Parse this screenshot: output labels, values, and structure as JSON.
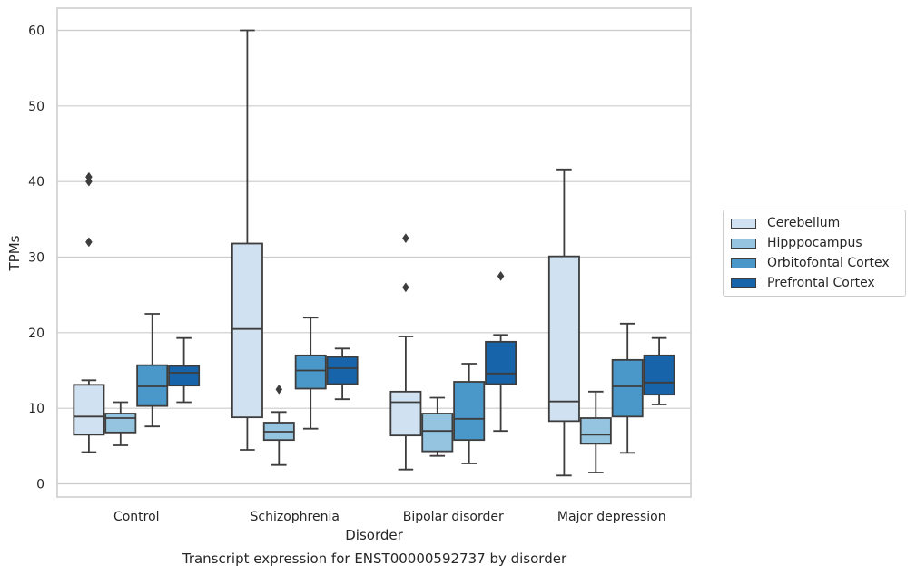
{
  "caption": "Transcript expression for ENST00000592737 by disorder",
  "chart_data": {
    "type": "box",
    "xlabel": "Disorder",
    "ylabel": "TPMs",
    "ylim": [
      -1.7,
      63
    ],
    "yticks": [
      0,
      10,
      20,
      30,
      40,
      50,
      60
    ],
    "grid": "horizontal",
    "legend_position": "right",
    "categories": [
      "Control",
      "Schizophrenia",
      "Bipolar disorder",
      "Major depression"
    ],
    "series": [
      {
        "name": "Cerebellum",
        "color": "#d0e1f2",
        "boxes": [
          {
            "min": 4.2,
            "q1": 6.5,
            "median": 8.9,
            "q3": 13.1,
            "max": 13.7,
            "outliers": [
              32.0,
              40.0,
              40.6
            ]
          },
          {
            "min": 4.5,
            "q1": 8.8,
            "median": 20.5,
            "q3": 31.8,
            "max": 60.0,
            "outliers": []
          },
          {
            "min": 1.9,
            "q1": 6.4,
            "median": 10.8,
            "q3": 12.2,
            "max": 19.5,
            "outliers": [
              26.0,
              32.5
            ]
          },
          {
            "min": 1.1,
            "q1": 8.3,
            "median": 10.9,
            "q3": 30.1,
            "max": 41.6,
            "outliers": []
          }
        ]
      },
      {
        "name": "Hipppocampus",
        "color": "#94c4df",
        "boxes": [
          {
            "min": 5.1,
            "q1": 6.8,
            "median": 8.7,
            "q3": 9.3,
            "max": 10.8,
            "outliers": []
          },
          {
            "min": 2.5,
            "q1": 5.8,
            "median": 6.9,
            "q3": 8.1,
            "max": 9.5,
            "outliers": [
              12.5
            ]
          },
          {
            "min": 3.7,
            "q1": 4.3,
            "median": 7.0,
            "q3": 9.3,
            "max": 11.4,
            "outliers": []
          },
          {
            "min": 1.5,
            "q1": 5.3,
            "median": 6.5,
            "q3": 8.7,
            "max": 12.2,
            "outliers": []
          }
        ]
      },
      {
        "name": "Orbitofontal Cortex",
        "color": "#4a98c9",
        "boxes": [
          {
            "min": 7.6,
            "q1": 10.3,
            "median": 12.9,
            "q3": 15.7,
            "max": 22.5,
            "outliers": []
          },
          {
            "min": 7.3,
            "q1": 12.6,
            "median": 15.0,
            "q3": 17.0,
            "max": 22.0,
            "outliers": []
          },
          {
            "min": 2.7,
            "q1": 5.8,
            "median": 8.6,
            "q3": 13.5,
            "max": 15.9,
            "outliers": []
          },
          {
            "min": 4.1,
            "q1": 8.9,
            "median": 12.9,
            "q3": 16.4,
            "max": 21.2,
            "outliers": []
          }
        ]
      },
      {
        "name": "Prefrontal Cortex",
        "color": "#1764ab",
        "boxes": [
          {
            "min": 10.8,
            "q1": 13.0,
            "median": 14.7,
            "q3": 15.6,
            "max": 19.3,
            "outliers": []
          },
          {
            "min": 11.2,
            "q1": 13.2,
            "median": 15.3,
            "q3": 16.8,
            "max": 17.9,
            "outliers": []
          },
          {
            "min": 7.0,
            "q1": 13.2,
            "median": 14.6,
            "q3": 18.8,
            "max": 19.7,
            "outliers": [
              27.5
            ]
          },
          {
            "min": 10.5,
            "q1": 11.8,
            "median": 13.4,
            "q3": 17.0,
            "max": 19.3,
            "outliers": []
          }
        ]
      }
    ]
  }
}
